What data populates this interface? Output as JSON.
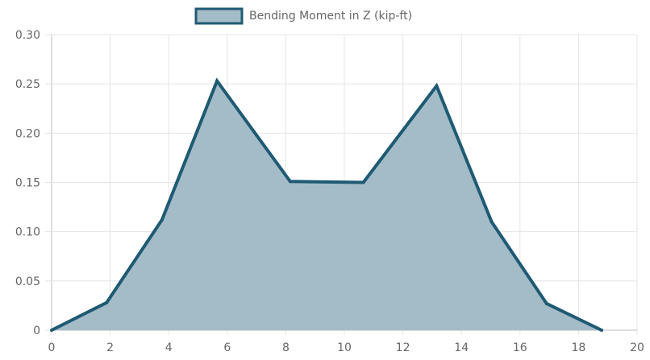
{
  "chart_data": {
    "type": "area",
    "series": [
      {
        "name": "Bending Moment in Z (kip-ft)",
        "x": [
          0,
          1.88,
          3.77,
          5.65,
          8.15,
          10.65,
          13.15,
          15.03,
          16.91,
          18.79
        ],
        "values": [
          0,
          0.028,
          0.112,
          0.253,
          0.151,
          0.15,
          0.248,
          0.11,
          0.027,
          0
        ]
      }
    ],
    "xlim": [
      0,
      20
    ],
    "ylim": [
      0,
      0.3
    ],
    "xticks": [
      "0",
      "2",
      "4",
      "6",
      "8",
      "10",
      "12",
      "14",
      "16",
      "18",
      "20"
    ],
    "yticks": [
      "0",
      "0.05",
      "0.10",
      "0.15",
      "0.20",
      "0.25",
      "0.30"
    ],
    "grid": true,
    "legend_position": "top-center",
    "colors": {
      "line": "#1f5a73",
      "fill": "#a3bcc8",
      "grid": "#e4e4e4",
      "axis": "#bdbdbd",
      "text": "#666666"
    }
  }
}
